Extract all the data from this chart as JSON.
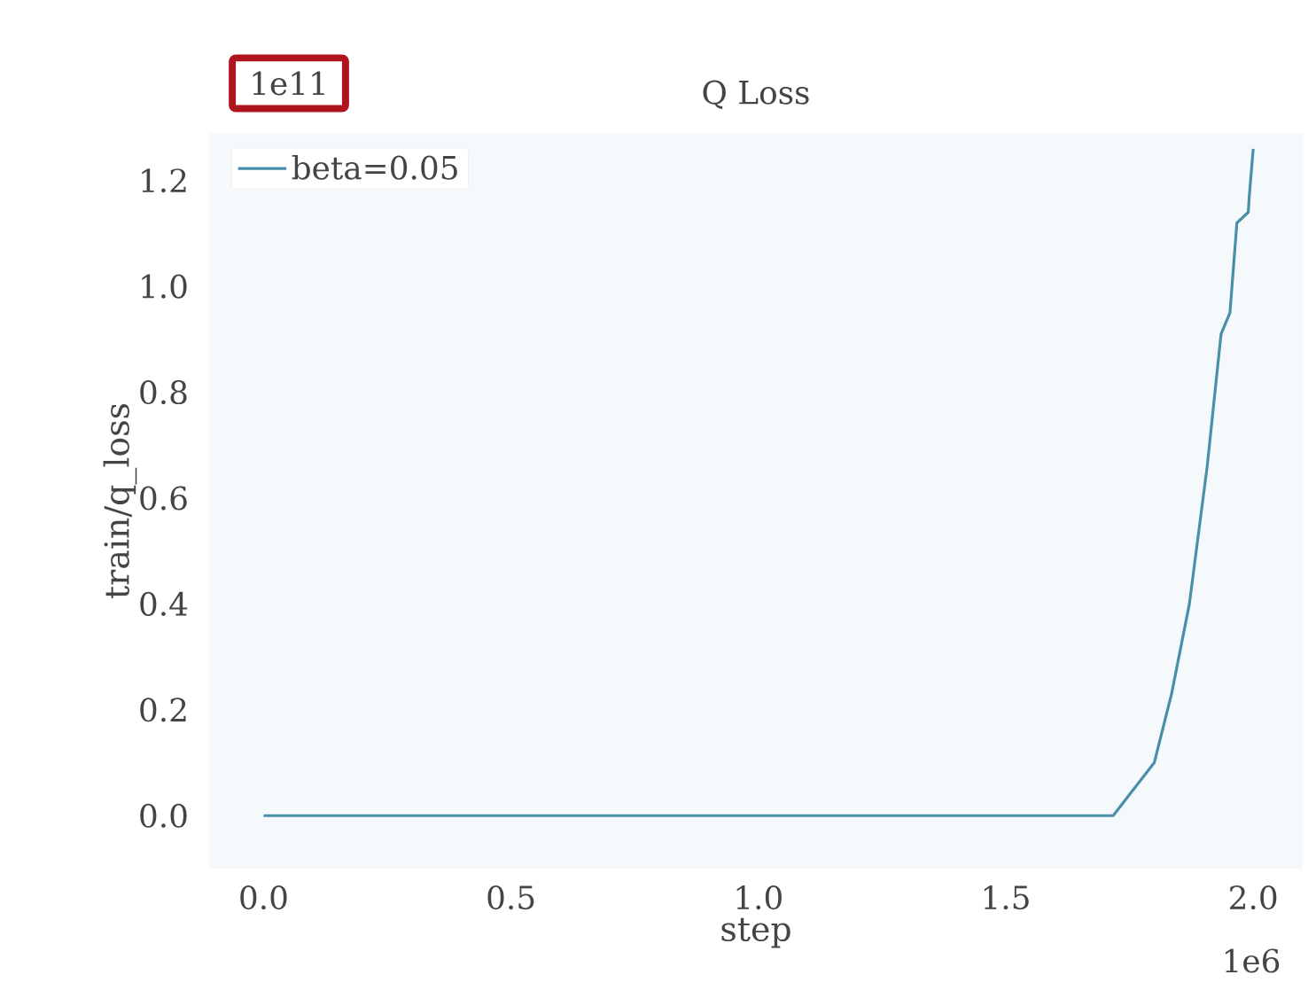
{
  "chart_data": {
    "type": "line",
    "title": "Q Loss",
    "xlabel": "step",
    "ylabel": "train/q_loss",
    "annotations": [
      "1e11",
      "1e6"
    ],
    "x": [
      0,
      1.717,
      1.8,
      1.835,
      1.871,
      1.907,
      1.935,
      1.953,
      1.967,
      1.99,
      1.992,
      2.0
    ],
    "series": [
      {
        "name": "beta=0.05",
        "color": "#4a8fa8",
        "values": [
          0,
          0,
          0.1,
          0.23,
          0.4,
          0.66,
          0.91,
          0.95,
          1.12,
          1.14,
          1.17,
          1.26
        ]
      }
    ],
    "xlim": [
      -0.11,
      2.1
    ],
    "ylim": [
      -0.1,
      1.29
    ],
    "xticks": [
      {
        "value": 0,
        "label": "0.0"
      },
      0.5,
      {
        "value": 1,
        "label": "1.0"
      },
      1.5,
      {
        "value": 2,
        "label": "2.0"
      }
    ],
    "yticks": [
      {
        "value": 0,
        "label": "0.0"
      },
      0.2,
      0.4,
      0.6,
      0.8,
      {
        "value": 1,
        "label": "1.0"
      },
      1.2
    ],
    "legend": "top left",
    "grid": false,
    "line_style": "solid",
    "marker": "none"
  }
}
